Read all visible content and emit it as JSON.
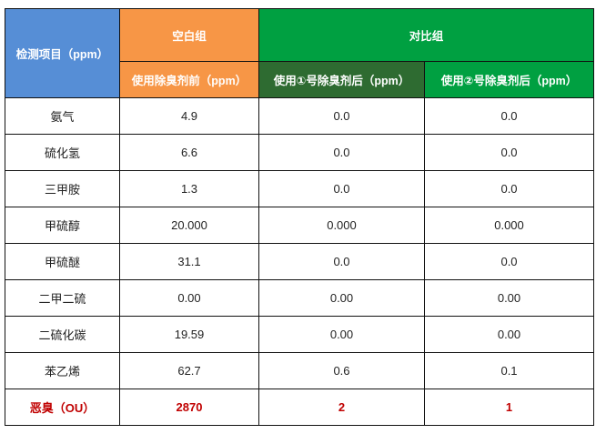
{
  "header": {
    "item_col": "检测项目（ppm）",
    "blank_group": "空白组",
    "compare_group": "对比组",
    "sub_before": "使用除臭剂前（ppm）",
    "sub_after1": "使用①号除臭剂后（ppm）",
    "sub_after2": "使用②号除臭剂后（ppm）"
  },
  "colors": {
    "item_header": "#568ed6",
    "blank_header": "#f79646",
    "compare_header": "#00a041",
    "after1_header": "#2e6b31",
    "odor_text": "#c00000"
  },
  "rows": [
    {
      "item": "氨气",
      "before": "4.9",
      "after1": "0.0",
      "after2": "0.0"
    },
    {
      "item": "硫化氢",
      "before": "6.6",
      "after1": "0.0",
      "after2": "0.0"
    },
    {
      "item": "三甲胺",
      "before": "1.3",
      "after1": "0.0",
      "after2": "0.0"
    },
    {
      "item": "甲硫醇",
      "before": "20.000",
      "after1": "0.000",
      "after2": "0.000"
    },
    {
      "item": "甲硫醚",
      "before": "31.1",
      "after1": "0.0",
      "after2": "0.0"
    },
    {
      "item": "二甲二硫",
      "before": "0.00",
      "after1": "0.00",
      "after2": "0.00"
    },
    {
      "item": "二硫化碳",
      "before": "19.59",
      "after1": "0.00",
      "after2": "0.00"
    },
    {
      "item": "苯乙烯",
      "before": "62.7",
      "after1": "0.6",
      "after2": "0.1"
    }
  ],
  "odor_row": {
    "item": "恶臭（OU）",
    "before": "2870",
    "after1": "2",
    "after2": "1"
  }
}
